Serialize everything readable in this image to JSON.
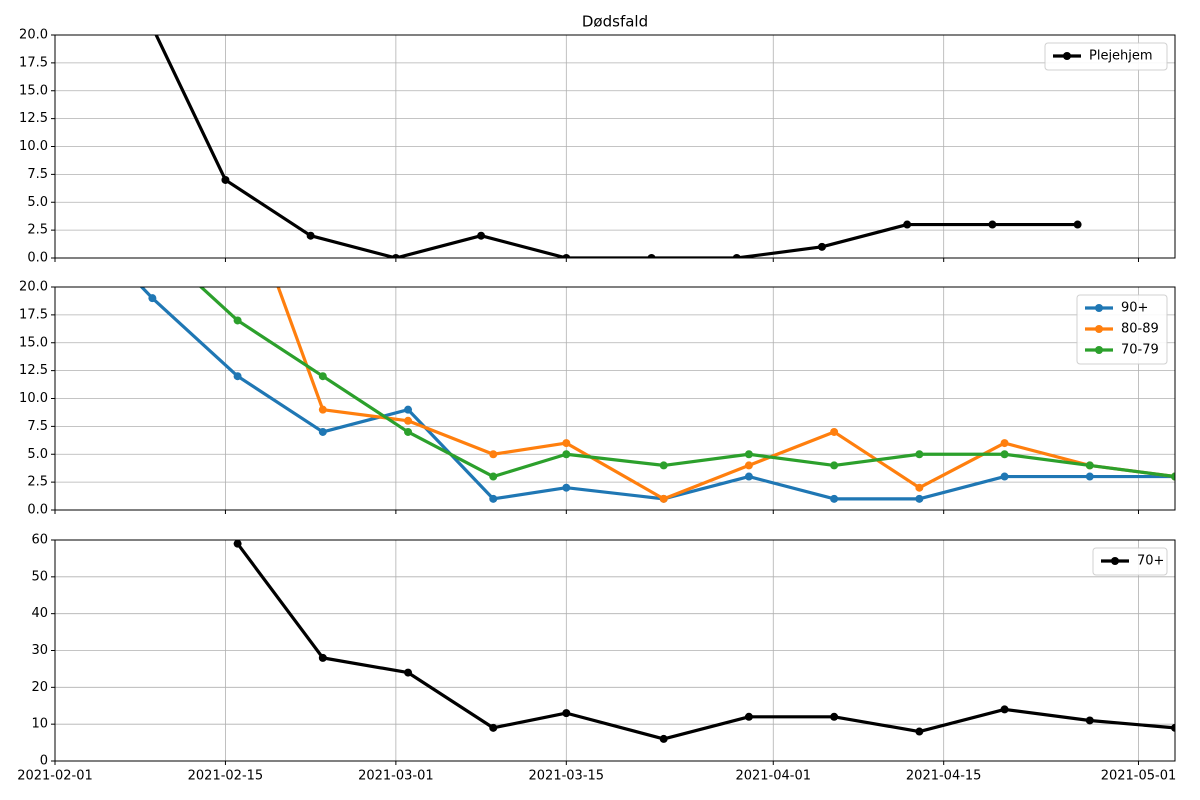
{
  "chart_data": [
    {
      "type": "line",
      "title": "Dødsfald",
      "x": [
        "2021-02-08",
        "2021-02-15",
        "2021-02-22",
        "2021-03-01",
        "2021-03-08",
        "2021-03-15",
        "2021-03-22",
        "2021-03-29",
        "2021-04-05",
        "2021-04-12",
        "2021-04-19",
        "2021-04-26"
      ],
      "series": [
        {
          "name": "Plejehjem",
          "color": "#000000",
          "values": [
            23,
            7,
            2,
            0,
            2,
            0,
            0,
            0,
            1,
            3,
            3,
            3
          ]
        }
      ],
      "xlim": [
        "2021-02-01",
        "2021-05-04"
      ],
      "xticks": [
        "2021-02-01",
        "2021-02-15",
        "2021-03-01",
        "2021-03-15",
        "2021-04-01",
        "2021-04-15",
        "2021-05-01"
      ],
      "ylim": [
        0,
        20
      ],
      "yticks": [
        {
          "value": 0,
          "label": "0.0"
        },
        {
          "value": 2.5,
          "label": "2.5"
        },
        {
          "value": 5,
          "label": "5.0"
        },
        {
          "value": 7.5,
          "label": "7.5"
        },
        {
          "value": 10,
          "label": "10.0"
        },
        {
          "value": 12.5,
          "label": "12.5"
        },
        {
          "value": 15,
          "label": "15.0"
        },
        {
          "value": 17.5,
          "label": "17.5"
        },
        {
          "value": 20,
          "label": "20.0"
        }
      ],
      "grid": true,
      "legend": "upper right"
    },
    {
      "type": "line",
      "x": [
        "2021-02-02",
        "2021-02-09",
        "2021-02-16",
        "2021-02-23",
        "2021-03-02",
        "2021-03-09",
        "2021-03-15",
        "2021-03-23",
        "2021-03-30",
        "2021-04-06",
        "2021-04-13",
        "2021-04-20",
        "2021-04-27",
        "2021-05-04"
      ],
      "series": [
        {
          "name": "90+",
          "color": "#1f77b4",
          "values": [
            27,
            19,
            12,
            7,
            9,
            1,
            2,
            1,
            3,
            1,
            1,
            3,
            3,
            3
          ]
        },
        {
          "name": "80-89",
          "color": "#ff7f0e",
          "values": [
            null,
            null,
            30,
            9,
            8,
            5,
            6,
            1,
            4,
            7,
            2,
            6,
            4,
            3
          ]
        },
        {
          "name": "70-79",
          "color": "#2ca02c",
          "values": [
            null,
            24,
            17,
            12,
            7,
            3,
            5,
            4,
            5,
            4,
            5,
            5,
            4,
            3
          ]
        }
      ],
      "xlim": [
        "2021-02-01",
        "2021-05-04"
      ],
      "xticks": [
        "2021-02-01",
        "2021-02-15",
        "2021-03-01",
        "2021-03-15",
        "2021-04-01",
        "2021-04-15",
        "2021-05-01"
      ],
      "ylim": [
        0,
        20
      ],
      "yticks": [
        {
          "value": 0,
          "label": "0.0"
        },
        {
          "value": 2.5,
          "label": "2.5"
        },
        {
          "value": 5,
          "label": "5.0"
        },
        {
          "value": 7.5,
          "label": "7.5"
        },
        {
          "value": 10,
          "label": "10.0"
        },
        {
          "value": 12.5,
          "label": "12.5"
        },
        {
          "value": 15,
          "label": "15.0"
        },
        {
          "value": 17.5,
          "label": "17.5"
        },
        {
          "value": 20,
          "label": "20.0"
        }
      ],
      "grid": true,
      "legend": "upper right"
    },
    {
      "type": "line",
      "x": [
        "2021-02-16",
        "2021-02-23",
        "2021-03-02",
        "2021-03-09",
        "2021-03-15",
        "2021-03-23",
        "2021-03-30",
        "2021-04-06",
        "2021-04-13",
        "2021-04-20",
        "2021-04-27",
        "2021-05-04"
      ],
      "series": [
        {
          "name": "70+",
          "color": "#000000",
          "values": [
            59,
            28,
            24,
            9,
            13,
            6,
            12,
            12,
            8,
            14,
            11,
            9
          ]
        }
      ],
      "xlim": [
        "2021-02-01",
        "2021-05-04"
      ],
      "xticks": [
        "2021-02-01",
        "2021-02-15",
        "2021-03-01",
        "2021-03-15",
        "2021-04-01",
        "2021-04-15",
        "2021-05-01"
      ],
      "ylim": [
        0,
        60
      ],
      "yticks": [
        0,
        10,
        20,
        30,
        40,
        50,
        60
      ],
      "grid": true,
      "legend": "upper right"
    }
  ]
}
